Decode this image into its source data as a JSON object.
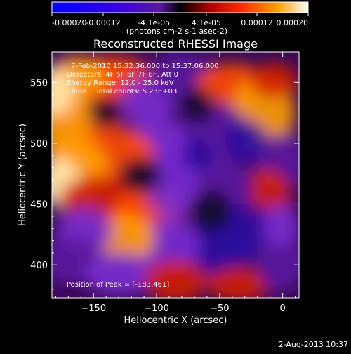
{
  "chart_data": {
    "type": "heatmap",
    "title": "Reconstructed RHESSI Image",
    "xlabel": "Heliocentric X (arcsec)",
    "ylabel": "Heliocentric Y (arcsec)",
    "x_ticks": [
      -150,
      -100,
      -50,
      0
    ],
    "y_ticks": [
      400,
      450,
      500,
      550
    ],
    "x_range": [
      -183,
      13
    ],
    "y_range": [
      373,
      575
    ],
    "colorbar": {
      "range": [
        -0.0002,
        0.0002
      ],
      "tick_values": [
        -0.0002,
        -0.00012,
        -4.1e-05,
        4.1e-05,
        0.00012,
        0.0002
      ],
      "tick_labels": [
        "-0.00020",
        "-0.00012",
        "-4.1e-05",
        "4.1e-05",
        "0.00012",
        "0.00020"
      ],
      "unit_label": "(photons cm-2 s-1 asec-2)"
    },
    "annotations": [
      "7-Feb-2010 15:32:36.000 to 15:37:06.000",
      "Detectors: 4F 5F 6F 7F 8F, Att 0",
      "Energy Range: 12.0 - 25.0 keV",
      "Clean    Total counts: 5.23E+03"
    ],
    "peak_label": "Position of Peak = [-183,461]",
    "peak": [
      -183,
      461
    ]
  },
  "footer": {
    "date": "2-Aug-2013 10:37"
  }
}
